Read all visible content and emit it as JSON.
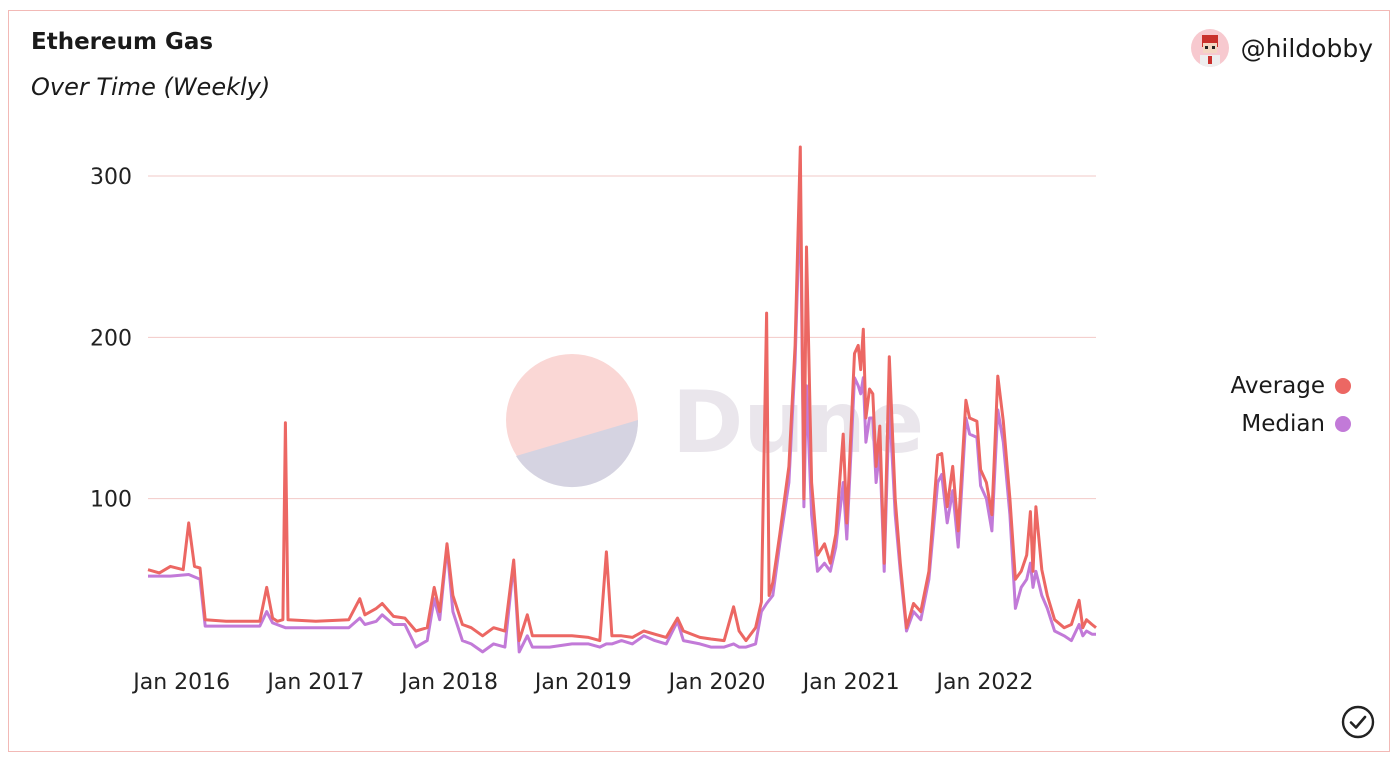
{
  "header": {
    "title": "Ethereum Gas",
    "subtitle": "Over Time (Weekly)",
    "author": "@hildobby"
  },
  "watermark": {
    "text": "Dune"
  },
  "colors": {
    "average": "#ec6763",
    "median": "#c27ad8",
    "grid": "#f2c9c7",
    "border": "#f2b9b6"
  },
  "chart_data": {
    "type": "line",
    "x_axis": "date",
    "x_ticks": [
      "Jan 2016",
      "Jan 2017",
      "Jan 2018",
      "Jan 2019",
      "Jan 2020",
      "Jan 2021",
      "Jan 2022"
    ],
    "y_ticks": [
      100,
      200,
      300
    ],
    "ylim": [
      0,
      325
    ],
    "xlim": [
      "2015-10-01",
      "2022-10-31"
    ],
    "grid": true,
    "legend_position": "right",
    "series": [
      {
        "name": "Average",
        "points": [
          [
            "2015-10-01",
            56
          ],
          [
            "2015-11-01",
            54
          ],
          [
            "2015-12-01",
            58
          ],
          [
            "2016-01-05",
            56
          ],
          [
            "2016-01-20",
            85
          ],
          [
            "2016-02-05",
            58
          ],
          [
            "2016-02-20",
            57
          ],
          [
            "2016-03-05",
            25
          ],
          [
            "2016-05-01",
            24
          ],
          [
            "2016-08-01",
            24
          ],
          [
            "2016-08-20",
            45
          ],
          [
            "2016-09-05",
            26
          ],
          [
            "2016-09-18",
            24
          ],
          [
            "2016-10-03",
            25
          ],
          [
            "2016-10-10",
            147
          ],
          [
            "2016-10-17",
            25
          ],
          [
            "2017-01-01",
            24
          ],
          [
            "2017-04-01",
            25
          ],
          [
            "2017-05-01",
            38
          ],
          [
            "2017-05-15",
            28
          ],
          [
            "2017-06-15",
            32
          ],
          [
            "2017-07-01",
            35
          ],
          [
            "2017-08-01",
            27
          ],
          [
            "2017-09-01",
            26
          ],
          [
            "2017-10-01",
            18
          ],
          [
            "2017-11-01",
            20
          ],
          [
            "2017-11-20",
            45
          ],
          [
            "2017-12-05",
            30
          ],
          [
            "2017-12-25",
            72
          ],
          [
            "2018-01-10",
            40
          ],
          [
            "2018-02-05",
            22
          ],
          [
            "2018-03-01",
            20
          ],
          [
            "2018-04-01",
            15
          ],
          [
            "2018-05-01",
            20
          ],
          [
            "2018-06-01",
            18
          ],
          [
            "2018-06-25",
            62
          ],
          [
            "2018-07-10",
            12
          ],
          [
            "2018-08-01",
            28
          ],
          [
            "2018-08-15",
            15
          ],
          [
            "2018-10-01",
            15
          ],
          [
            "2018-12-01",
            15
          ],
          [
            "2019-01-15",
            14
          ],
          [
            "2019-02-15",
            12
          ],
          [
            "2019-03-05",
            67
          ],
          [
            "2019-03-20",
            15
          ],
          [
            "2019-04-15",
            15
          ],
          [
            "2019-05-15",
            14
          ],
          [
            "2019-06-15",
            18
          ],
          [
            "2019-07-15",
            16
          ],
          [
            "2019-08-15",
            14
          ],
          [
            "2019-09-15",
            26
          ],
          [
            "2019-10-01",
            18
          ],
          [
            "2019-11-15",
            14
          ],
          [
            "2019-12-15",
            13
          ],
          [
            "2020-01-20",
            12
          ],
          [
            "2020-02-15",
            33
          ],
          [
            "2020-03-01",
            18
          ],
          [
            "2020-03-20",
            12
          ],
          [
            "2020-04-15",
            20
          ],
          [
            "2020-05-01",
            36
          ],
          [
            "2020-05-15",
            215
          ],
          [
            "2020-05-22",
            40
          ],
          [
            "2020-06-01",
            48
          ],
          [
            "2020-06-20",
            78
          ],
          [
            "2020-07-15",
            120
          ],
          [
            "2020-08-01",
            195
          ],
          [
            "2020-08-15",
            318
          ],
          [
            "2020-08-25",
            100
          ],
          [
            "2020-09-01",
            256
          ],
          [
            "2020-09-15",
            110
          ],
          [
            "2020-10-01",
            65
          ],
          [
            "2020-10-20",
            72
          ],
          [
            "2020-11-05",
            60
          ],
          [
            "2020-11-20",
            78
          ],
          [
            "2020-12-10",
            140
          ],
          [
            "2020-12-20",
            85
          ],
          [
            "2021-01-10",
            190
          ],
          [
            "2021-01-20",
            195
          ],
          [
            "2021-01-27",
            180
          ],
          [
            "2021-02-03",
            205
          ],
          [
            "2021-02-10",
            150
          ],
          [
            "2021-02-20",
            168
          ],
          [
            "2021-03-01",
            165
          ],
          [
            "2021-03-10",
            120
          ],
          [
            "2021-03-20",
            145
          ],
          [
            "2021-04-01",
            60
          ],
          [
            "2021-04-15",
            188
          ],
          [
            "2021-05-01",
            100
          ],
          [
            "2021-05-15",
            60
          ],
          [
            "2021-06-01",
            20
          ],
          [
            "2021-06-20",
            35
          ],
          [
            "2021-07-10",
            30
          ],
          [
            "2021-08-01",
            55
          ],
          [
            "2021-08-25",
            127
          ],
          [
            "2021-09-05",
            128
          ],
          [
            "2021-09-20",
            95
          ],
          [
            "2021-10-05",
            120
          ],
          [
            "2021-10-20",
            80
          ],
          [
            "2021-11-10",
            161
          ],
          [
            "2021-11-20",
            150
          ],
          [
            "2021-12-10",
            148
          ],
          [
            "2021-12-20",
            118
          ],
          [
            "2022-01-05",
            110
          ],
          [
            "2022-01-20",
            90
          ],
          [
            "2022-02-05",
            176
          ],
          [
            "2022-02-20",
            148
          ],
          [
            "2022-03-10",
            100
          ],
          [
            "2022-03-25",
            50
          ],
          [
            "2022-04-10",
            55
          ],
          [
            "2022-04-25",
            65
          ],
          [
            "2022-05-05",
            92
          ],
          [
            "2022-05-12",
            55
          ],
          [
            "2022-05-20",
            95
          ],
          [
            "2022-06-05",
            56
          ],
          [
            "2022-06-20",
            40
          ],
          [
            "2022-07-10",
            25
          ],
          [
            "2022-08-05",
            20
          ],
          [
            "2022-08-25",
            22
          ],
          [
            "2022-09-15",
            37
          ],
          [
            "2022-09-25",
            20
          ],
          [
            "2022-10-05",
            25
          ],
          [
            "2022-10-20",
            22
          ],
          [
            "2022-10-31",
            20
          ]
        ]
      },
      {
        "name": "Median",
        "points": [
          [
            "2015-10-01",
            52
          ],
          [
            "2015-12-01",
            52
          ],
          [
            "2016-01-20",
            53
          ],
          [
            "2016-02-20",
            50
          ],
          [
            "2016-03-05",
            21
          ],
          [
            "2016-05-01",
            21
          ],
          [
            "2016-08-01",
            21
          ],
          [
            "2016-08-20",
            30
          ],
          [
            "2016-09-05",
            23
          ],
          [
            "2016-10-10",
            20
          ],
          [
            "2017-01-01",
            20
          ],
          [
            "2017-04-01",
            20
          ],
          [
            "2017-05-01",
            26
          ],
          [
            "2017-05-15",
            22
          ],
          [
            "2017-06-15",
            24
          ],
          [
            "2017-07-01",
            28
          ],
          [
            "2017-08-01",
            22
          ],
          [
            "2017-09-01",
            22
          ],
          [
            "2017-10-01",
            8
          ],
          [
            "2017-11-01",
            12
          ],
          [
            "2017-11-20",
            38
          ],
          [
            "2017-12-05",
            25
          ],
          [
            "2017-12-25",
            70
          ],
          [
            "2018-01-10",
            30
          ],
          [
            "2018-02-05",
            12
          ],
          [
            "2018-03-01",
            10
          ],
          [
            "2018-04-01",
            5
          ],
          [
            "2018-05-01",
            10
          ],
          [
            "2018-06-01",
            8
          ],
          [
            "2018-06-25",
            60
          ],
          [
            "2018-07-10",
            5
          ],
          [
            "2018-08-01",
            15
          ],
          [
            "2018-08-15",
            8
          ],
          [
            "2018-10-01",
            8
          ],
          [
            "2018-12-01",
            10
          ],
          [
            "2019-01-15",
            10
          ],
          [
            "2019-02-15",
            8
          ],
          [
            "2019-03-05",
            10
          ],
          [
            "2019-03-20",
            10
          ],
          [
            "2019-04-15",
            12
          ],
          [
            "2019-05-15",
            10
          ],
          [
            "2019-06-15",
            15
          ],
          [
            "2019-07-15",
            12
          ],
          [
            "2019-08-15",
            10
          ],
          [
            "2019-09-15",
            24
          ],
          [
            "2019-10-01",
            12
          ],
          [
            "2019-11-15",
            10
          ],
          [
            "2019-12-15",
            8
          ],
          [
            "2020-01-20",
            8
          ],
          [
            "2020-02-15",
            10
          ],
          [
            "2020-03-01",
            8
          ],
          [
            "2020-03-20",
            8
          ],
          [
            "2020-04-15",
            10
          ],
          [
            "2020-05-01",
            30
          ],
          [
            "2020-05-15",
            35
          ],
          [
            "2020-06-01",
            40
          ],
          [
            "2020-06-20",
            72
          ],
          [
            "2020-07-15",
            110
          ],
          [
            "2020-08-01",
            185
          ],
          [
            "2020-08-15",
            290
          ],
          [
            "2020-08-25",
            95
          ],
          [
            "2020-09-01",
            170
          ],
          [
            "2020-09-15",
            90
          ],
          [
            "2020-10-01",
            55
          ],
          [
            "2020-10-20",
            60
          ],
          [
            "2020-11-05",
            55
          ],
          [
            "2020-11-20",
            70
          ],
          [
            "2020-12-10",
            110
          ],
          [
            "2020-12-20",
            75
          ],
          [
            "2021-01-10",
            175
          ],
          [
            "2021-01-20",
            170
          ],
          [
            "2021-01-27",
            165
          ],
          [
            "2021-02-03",
            175
          ],
          [
            "2021-02-10",
            135
          ],
          [
            "2021-02-20",
            150
          ],
          [
            "2021-03-01",
            150
          ],
          [
            "2021-03-10",
            110
          ],
          [
            "2021-03-20",
            130
          ],
          [
            "2021-04-01",
            55
          ],
          [
            "2021-04-15",
            160
          ],
          [
            "2021-05-01",
            90
          ],
          [
            "2021-05-15",
            55
          ],
          [
            "2021-06-01",
            18
          ],
          [
            "2021-06-20",
            30
          ],
          [
            "2021-07-10",
            25
          ],
          [
            "2021-08-01",
            50
          ],
          [
            "2021-08-25",
            110
          ],
          [
            "2021-09-05",
            115
          ],
          [
            "2021-09-20",
            85
          ],
          [
            "2021-10-05",
            105
          ],
          [
            "2021-10-20",
            70
          ],
          [
            "2021-11-10",
            150
          ],
          [
            "2021-11-20",
            140
          ],
          [
            "2021-12-10",
            138
          ],
          [
            "2021-12-20",
            108
          ],
          [
            "2022-01-05",
            100
          ],
          [
            "2022-01-20",
            80
          ],
          [
            "2022-02-05",
            155
          ],
          [
            "2022-02-20",
            135
          ],
          [
            "2022-03-10",
            90
          ],
          [
            "2022-03-25",
            32
          ],
          [
            "2022-04-10",
            45
          ],
          [
            "2022-04-25",
            50
          ],
          [
            "2022-05-05",
            60
          ],
          [
            "2022-05-12",
            45
          ],
          [
            "2022-05-20",
            55
          ],
          [
            "2022-06-05",
            40
          ],
          [
            "2022-06-20",
            32
          ],
          [
            "2022-07-10",
            18
          ],
          [
            "2022-08-05",
            15
          ],
          [
            "2022-08-25",
            12
          ],
          [
            "2022-09-15",
            22
          ],
          [
            "2022-09-25",
            15
          ],
          [
            "2022-10-05",
            18
          ],
          [
            "2022-10-20",
            16
          ],
          [
            "2022-10-31",
            16
          ]
        ]
      }
    ]
  }
}
